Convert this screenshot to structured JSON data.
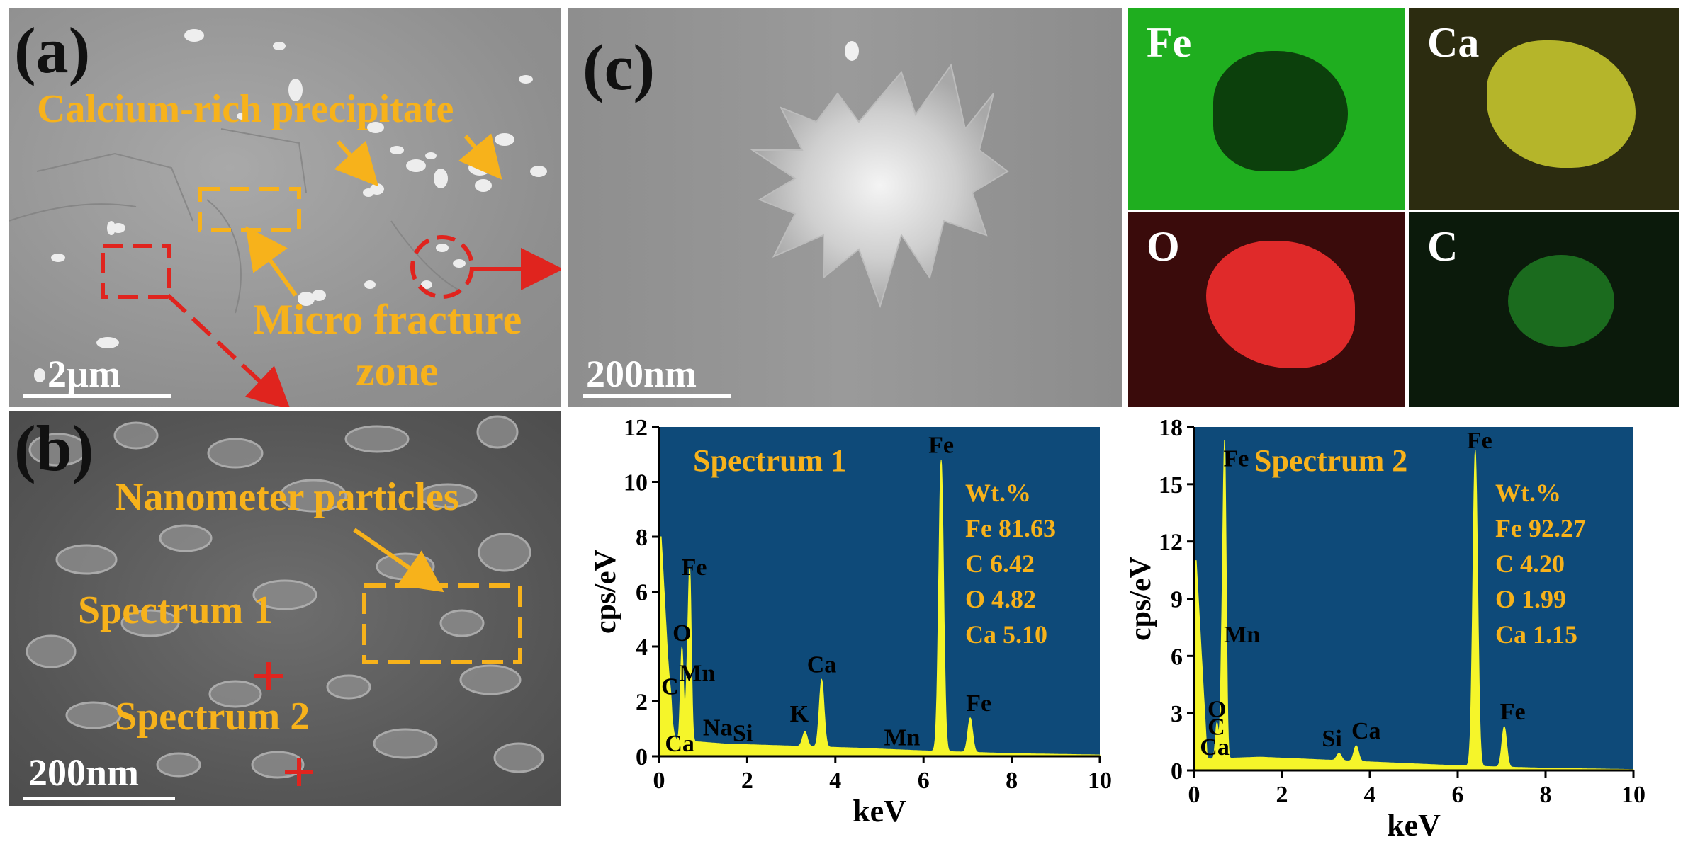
{
  "panel_a": {
    "letter": "(a)",
    "label_precipitate": "Calcium-rich precipitate",
    "label_fracture_line1": "Micro fracture",
    "label_fracture_line2": "zone",
    "scalebar": "2µm"
  },
  "panel_b": {
    "letter": "(b)",
    "label_particles": "Nanometer particles",
    "label_spectrum1": "Spectrum 1",
    "label_spectrum2": "Spectrum 2",
    "scalebar": "200nm"
  },
  "panel_c": {
    "letter": "(c)",
    "scalebar": "200nm",
    "maps": [
      {
        "element": "Fe",
        "color": "#1fae1f"
      },
      {
        "element": "Ca",
        "color": "#a5a51e"
      },
      {
        "element": "O",
        "color": "#e02a2a"
      },
      {
        "element": "C",
        "color": "#22a02a"
      }
    ]
  },
  "colors": {
    "annotation_orange": "#f7b21b",
    "marker_red": "#e0241e",
    "spectrum_bg": "#0e4a79",
    "spectrum_fill": "#f5f52a"
  },
  "chart_data": [
    {
      "type": "area",
      "title": "Spectrum 1",
      "xlabel": "keV",
      "ylabel": "cps/eV",
      "xlim": [
        0,
        10
      ],
      "ylim": [
        0,
        12
      ],
      "xticks": [
        0,
        2,
        4,
        6,
        8,
        10
      ],
      "yticks": [
        0,
        2,
        4,
        6,
        8,
        10,
        12
      ],
      "composition_header": "Wt.%",
      "composition": [
        "Fe 81.63",
        "C 6.42",
        "O 4.82",
        "Ca 5.10"
      ],
      "peaks": [
        {
          "label": "C",
          "x": 0.28,
          "y": 2.0
        },
        {
          "label": "Ca",
          "x": 0.34,
          "y": 0.7
        },
        {
          "label": "O",
          "x": 0.52,
          "y": 4.0
        },
        {
          "label": "Fe",
          "x": 0.7,
          "y": 6.4
        },
        {
          "label": "Mn",
          "x": 0.64,
          "y": 2.6
        },
        {
          "label": "Na",
          "x": 1.04,
          "y": 0.5
        },
        {
          "label": "Si",
          "x": 1.74,
          "y": 0.4
        },
        {
          "label": "K",
          "x": 3.31,
          "y": 0.9
        },
        {
          "label": "Ca",
          "x": 3.69,
          "y": 2.8
        },
        {
          "label": "Mn",
          "x": 5.9,
          "y": 0.2
        },
        {
          "label": "Fe",
          "x": 6.4,
          "y": 10.8
        },
        {
          "label": "Fe",
          "x": 7.06,
          "y": 1.4
        }
      ],
      "baseline": [
        [
          0.05,
          8.0
        ],
        [
          0.3,
          0.6
        ],
        [
          1.5,
          0.45
        ],
        [
          2.5,
          0.4
        ],
        [
          4.5,
          0.3
        ],
        [
          6.0,
          0.2
        ],
        [
          8.0,
          0.1
        ],
        [
          10.0,
          0.05
        ]
      ]
    },
    {
      "type": "area",
      "title": "Spectrum 2",
      "xlabel": "keV",
      "ylabel": "cps/eV",
      "xlim": [
        0,
        10
      ],
      "ylim": [
        0,
        18
      ],
      "xticks": [
        0,
        2,
        4,
        6,
        8,
        10
      ],
      "yticks": [
        0,
        3,
        6,
        9,
        12,
        15,
        18
      ],
      "composition_header": "Wt.%",
      "composition": [
        "Fe 92.27",
        "C 4.20",
        "O 1.99",
        "Ca 1.15"
      ],
      "peaks": [
        {
          "label": "Ca",
          "x": 0.34,
          "y": 0.6
        },
        {
          "label": "C",
          "x": 0.28,
          "y": 1.5
        },
        {
          "label": "O",
          "x": 0.52,
          "y": 2.5
        },
        {
          "label": "Mn",
          "x": 0.64,
          "y": 6.5
        },
        {
          "label": "Fe",
          "x": 0.7,
          "y": 15.8
        },
        {
          "label": "Si",
          "x": 3.3,
          "y": 0.9
        },
        {
          "label": "Ca",
          "x": 3.69,
          "y": 1.3
        },
        {
          "label": "Fe",
          "x": 6.4,
          "y": 16.8
        },
        {
          "label": "Fe",
          "x": 7.06,
          "y": 2.3
        }
      ],
      "baseline": [
        [
          0.05,
          11.0
        ],
        [
          0.3,
          0.6
        ],
        [
          1.5,
          0.7
        ],
        [
          2.5,
          0.6
        ],
        [
          4.5,
          0.4
        ],
        [
          6.0,
          0.25
        ],
        [
          8.0,
          0.12
        ],
        [
          10.0,
          0.05
        ]
      ]
    }
  ]
}
